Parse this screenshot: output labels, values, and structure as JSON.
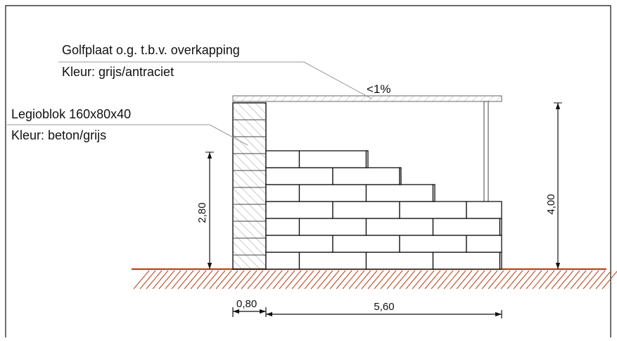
{
  "annotations": {
    "roof_title": "Golfplaat o.g. t.b.v. overkapping",
    "roof_color": "Kleur: grijs/antraciet",
    "block_title": "Legioblok 160x80x40",
    "block_color": "Kleur: beton/grijs",
    "slope": "<1%"
  },
  "dimensions": {
    "wall_height": "2,80",
    "total_height": "4,00",
    "column_width": "0,80",
    "wall_length": "5,60"
  },
  "colors": {
    "ground": "#b5451b",
    "hatch": "#888888",
    "line": "#111111"
  }
}
